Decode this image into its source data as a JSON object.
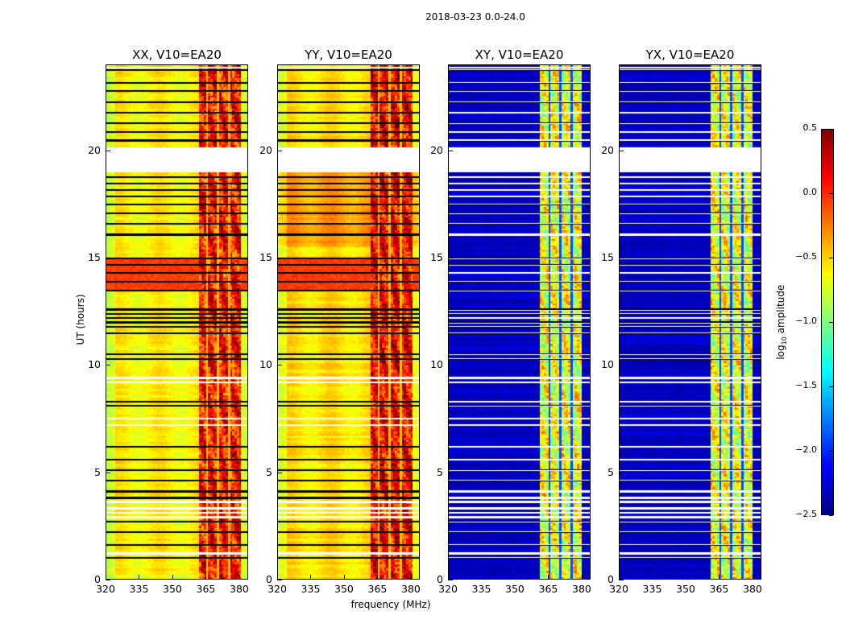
{
  "chart_data": {
    "type": "heatmap",
    "title": "2018-03-23 0.0-24.0",
    "xlabel": "frequency (MHz)",
    "ylabel": "UT (hours)",
    "xlim": [
      320,
      384
    ],
    "ylim": [
      0,
      24
    ],
    "xticks": [
      "320",
      "335",
      "350",
      "365",
      "380"
    ],
    "xtick_values": [
      320,
      335,
      350,
      365,
      380
    ],
    "yticks": [
      "0",
      "5",
      "10",
      "15",
      "20"
    ],
    "ytick_values": [
      0,
      5,
      10,
      15,
      20
    ],
    "colorbar": {
      "label_main": "log",
      "label_sub": "10",
      "label_rest": " amplitude",
      "range": [
        -2.5,
        0.5
      ],
      "ticks": [
        "0.5",
        "0.0",
        "−0.5",
        "−1.0",
        "−1.5",
        "−2.0",
        "−2.5"
      ],
      "tick_values": [
        0.5,
        0.0,
        -0.5,
        -1.0,
        -1.5,
        -2.0,
        -2.5
      ],
      "colormap": "jet"
    },
    "flagged_gap_hours": [
      19.0,
      20.2
    ],
    "black_row_hours": [
      23.8,
      23.2,
      22.8,
      22.3,
      21.8,
      21.3,
      20.9,
      20.5,
      18.8,
      18.5,
      18.2,
      17.9,
      17.5,
      17.1,
      16.6,
      16.1,
      15.0,
      14.7,
      14.3,
      13.9,
      13.5,
      12.6,
      12.4,
      12.2,
      12.0,
      11.8,
      11.5,
      10.5,
      10.3,
      8.3,
      8.1,
      6.2,
      5.6,
      5.1,
      4.6,
      4.1,
      3.8,
      2.7,
      2.2,
      1.6,
      1.0
    ],
    "white_row_hours": [
      23.9,
      9.4,
      9.2,
      7.5,
      7.2,
      3.6,
      3.3,
      3.1,
      2.9,
      1.2
    ],
    "panels": [
      {
        "title": "XX, V10=EA20",
        "base_level": -0.6,
        "band_mhz": [
          362,
          381
        ],
        "band_level": -0.05,
        "bright_hours": [
          13.5,
          15.0
        ],
        "bright_level": -0.05
      },
      {
        "title": "YY, V10=EA20",
        "base_level": -0.55,
        "band_mhz": [
          362,
          381
        ],
        "band_level": 0.0,
        "bright_hours": [
          13.5,
          15.0
        ],
        "bright_level": -0.05
      },
      {
        "title": "XY, V10=EA20",
        "base_level": -2.3,
        "band_mhz": [
          360.6,
          380
        ],
        "band_level": -0.8,
        "bright_hours": null,
        "bright_level": null
      },
      {
        "title": "YX, V10=EA20",
        "base_level": -2.3,
        "band_mhz": [
          360.6,
          380
        ],
        "band_level": -0.8,
        "bright_hours": null,
        "bright_level": null
      }
    ]
  }
}
